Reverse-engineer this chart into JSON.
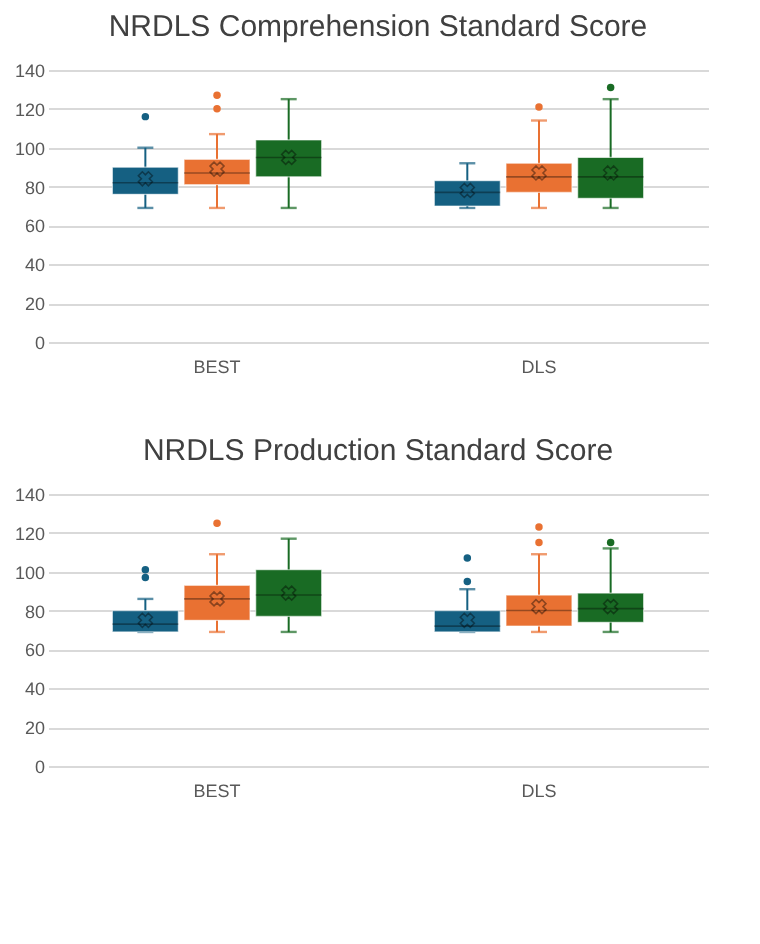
{
  "chart_data": [
    {
      "type": "box",
      "title": "NRDLS Comprehension Standard Score",
      "categories": [
        "BEST",
        "DLS"
      ],
      "ylim": [
        0,
        140
      ],
      "yticks": [
        0,
        20,
        40,
        60,
        80,
        100,
        120,
        140
      ],
      "grid": "y",
      "marker": "cross",
      "series": [
        {
          "color": "#156082",
          "boxes": [
            {
              "low": 69,
              "q1": 76,
              "median": 82,
              "q3": 90,
              "high": 100,
              "mean": 84,
              "outliers": [
                116
              ]
            },
            {
              "low": 69,
              "q1": 70,
              "median": 77,
              "q3": 83,
              "high": 92,
              "mean": 78
            }
          ]
        },
        {
          "color": "#e97132",
          "boxes": [
            {
              "low": 69,
              "q1": 81,
              "median": 87,
              "q3": 94,
              "high": 107,
              "mean": 89,
              "outliers": [
                120,
                127
              ]
            },
            {
              "low": 69,
              "q1": 77,
              "median": 85,
              "q3": 92,
              "high": 114,
              "mean": 87,
              "outliers": [
                121
              ]
            }
          ]
        },
        {
          "color": "#196b24",
          "boxes": [
            {
              "low": 69,
              "q1": 85,
              "median": 95,
              "q3": 104,
              "high": 125,
              "mean": 95
            },
            {
              "low": 69,
              "q1": 74,
              "median": 85,
              "q3": 95,
              "high": 125,
              "mean": 87,
              "outliers": [
                131
              ]
            }
          ]
        }
      ]
    },
    {
      "type": "box",
      "title": "NRDLS Production Standard Score",
      "categories": [
        "BEST",
        "DLS"
      ],
      "ylim": [
        0,
        140
      ],
      "yticks": [
        0,
        20,
        40,
        60,
        80,
        100,
        120,
        140
      ],
      "grid": "y",
      "marker": "cross",
      "series": [
        {
          "color": "#156082",
          "boxes": [
            {
              "low": 69,
              "q1": 69,
              "median": 73,
              "q3": 80,
              "high": 86,
              "mean": 75,
              "outliers": [
                97,
                101
              ]
            },
            {
              "low": 69,
              "q1": 69,
              "median": 72,
              "q3": 80,
              "high": 91,
              "mean": 75,
              "outliers": [
                95,
                107
              ]
            }
          ]
        },
        {
          "color": "#e97132",
          "boxes": [
            {
              "low": 69,
              "q1": 75,
              "median": 86,
              "q3": 93,
              "high": 109,
              "mean": 86,
              "outliers": [
                125
              ]
            },
            {
              "low": 69,
              "q1": 72,
              "median": 80,
              "q3": 88,
              "high": 109,
              "mean": 82,
              "outliers": [
                115,
                123
              ]
            }
          ]
        },
        {
          "color": "#196b24",
          "boxes": [
            {
              "low": 69,
              "q1": 77,
              "median": 88,
              "q3": 101,
              "high": 117,
              "mean": 89
            },
            {
              "low": 69,
              "q1": 74,
              "median": 81,
              "q3": 89,
              "high": 112,
              "mean": 82,
              "outliers": [
                115
              ]
            }
          ]
        }
      ]
    }
  ]
}
